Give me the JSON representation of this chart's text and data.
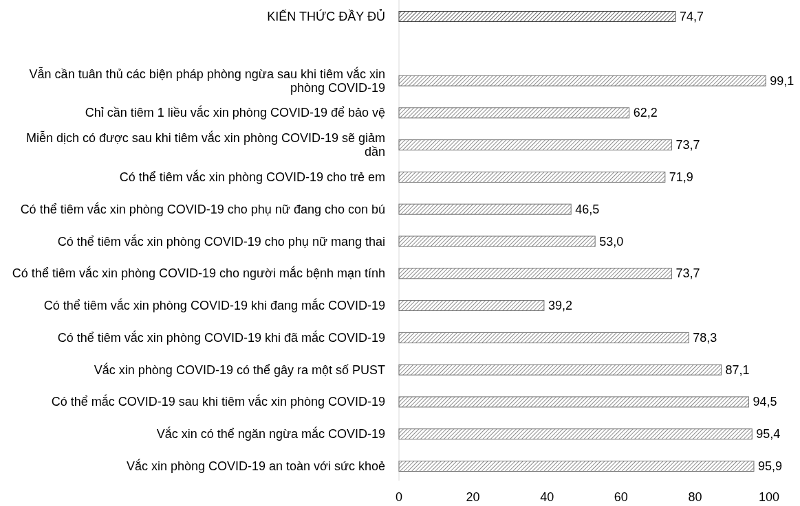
{
  "chart_data": {
    "type": "bar",
    "orientation": "horizontal",
    "categories": [
      "KIẾN THỨC ĐẦY ĐỦ",
      null,
      "Vẫn cần tuân thủ các biện pháp phòng ngừa sau khi tiêm vắc xin phòng COVID-19",
      "Chỉ cần tiêm 1 liều vắc xin phòng COVID-19 để bảo vệ",
      "Miễn dịch có được sau khi tiêm vắc xin phòng COVID-19 sẽ giảm dần",
      "Có thể tiêm vắc xin phòng COVID-19 cho trẻ em",
      "Có thể tiêm vắc xin phòng COVID-19 cho phụ nữ đang cho con bú",
      "Có thể tiêm vắc xin phòng COVID-19 cho phụ nữ mang thai",
      "Có thể tiêm vắc xin phòng COVID-19 cho người mắc bệnh mạn tính",
      "Có thể tiêm vắc xin phòng COVID-19 khi đang mắc COVID-19",
      "Có thể tiêm vắc xin phòng COVID-19 khi đã mắc COVID-19",
      "Vắc xin phòng COVID-19 có thể gây ra một số PUST",
      "Có thể mắc COVID-19 sau khi tiêm vắc xin phòng COVID-19",
      "Vắc xin có thể ngăn ngừa mắc COVID-19",
      "Vắc xin phòng COVID-19 an toàn với sức khoẻ"
    ],
    "values": [
      74.7,
      null,
      99.1,
      62.2,
      73.7,
      71.9,
      46.5,
      53.0,
      73.7,
      39.2,
      78.3,
      87.1,
      94.5,
      95.4,
      95.9
    ],
    "value_labels": [
      "74,7",
      null,
      "99,1",
      "62,2",
      "73,7",
      "71,9",
      "46,5",
      "53,0",
      "73,7",
      "39,2",
      "78,3",
      "87,1",
      "94,5",
      "95,4",
      "95,9"
    ],
    "colors": [
      "#404040",
      null,
      "#707070",
      "#707070",
      "#707070",
      "#707070",
      "#707070",
      "#707070",
      "#707070",
      "#707070",
      "#707070",
      "#707070",
      "#707070",
      "#707070",
      "#707070"
    ],
    "xlim": [
      0,
      100
    ],
    "xticks": [
      0,
      20,
      40,
      60,
      80,
      100
    ],
    "grid": false
  }
}
